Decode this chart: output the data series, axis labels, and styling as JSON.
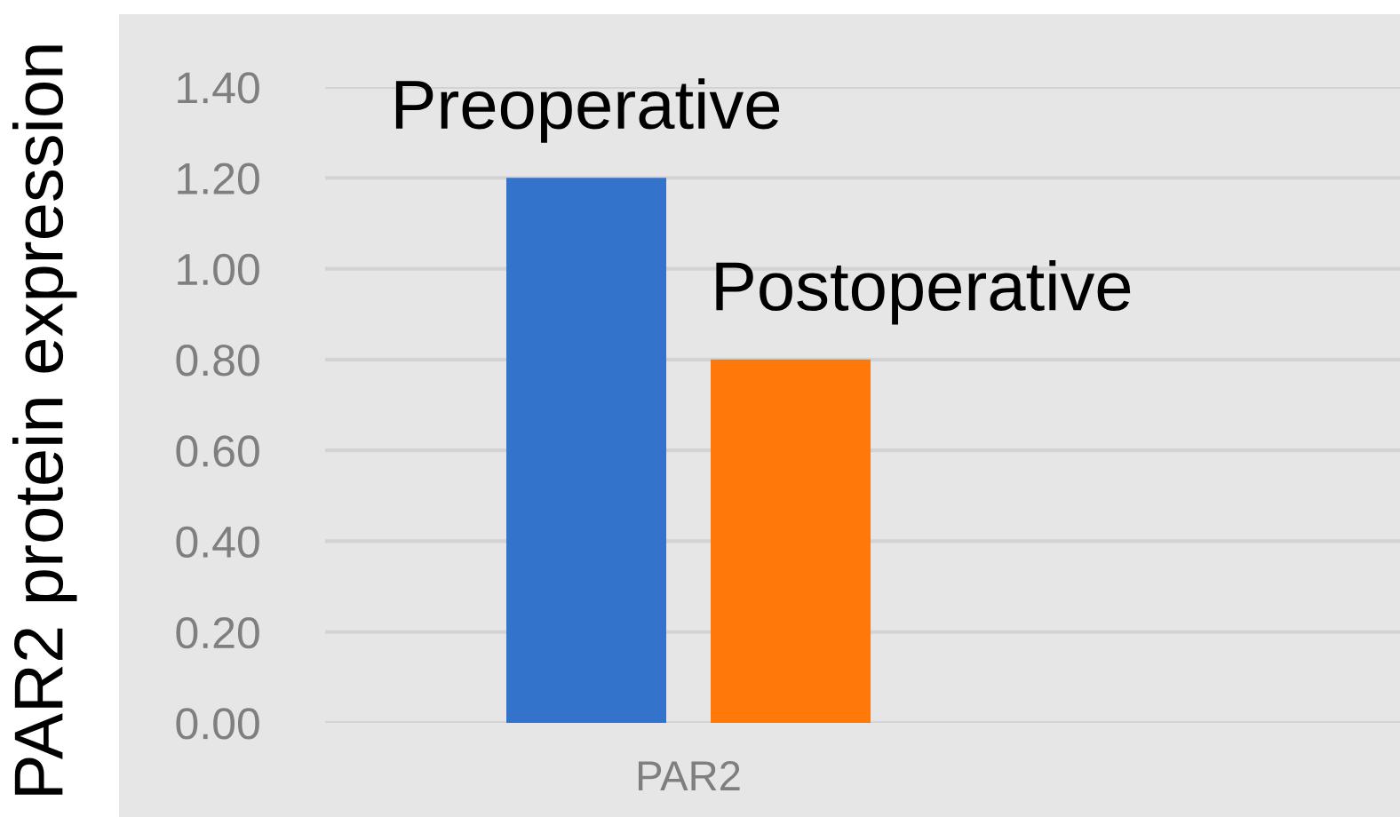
{
  "chart_data": {
    "type": "bar",
    "categories": [
      "PAR2"
    ],
    "ylabel": "PAR2 protein expression",
    "series": [
      {
        "name": "Preoperative",
        "color": "#3373cc",
        "values": [
          1.2
        ]
      },
      {
        "name": "Postoperative",
        "color": "#ff780a",
        "values": [
          0.8
        ]
      }
    ],
    "ylim": [
      0,
      1.4
    ],
    "yticks": [
      {
        "value": 0,
        "label": "0.00"
      },
      {
        "value": 0.2,
        "label": "0.20"
      },
      {
        "value": 0.4,
        "label": "0.40"
      },
      {
        "value": 0.6,
        "label": "0.60"
      },
      {
        "value": 0.8,
        "label": "0.80"
      },
      {
        "value": 1.0,
        "label": "1.00"
      },
      {
        "value": 1.2,
        "label": "1.20"
      },
      {
        "value": 1.4,
        "label": "1.40"
      }
    ],
    "grid": "y"
  }
}
